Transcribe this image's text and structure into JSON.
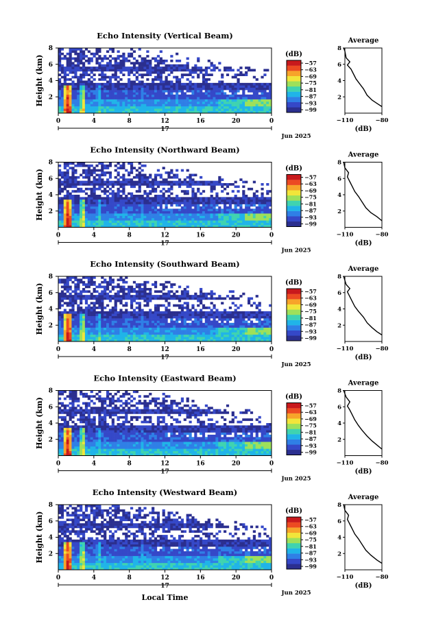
{
  "chart_data": {
    "type": "heatmap",
    "colorbar": {
      "unit": "(dB)",
      "ticks": [
        -57,
        -63,
        -69,
        -75,
        -81,
        -87,
        -93,
        -99
      ],
      "colors": [
        "#2b2f8f",
        "#3548c8",
        "#2f7fe6",
        "#20b4e8",
        "#3fd3b0",
        "#9ee05a",
        "#f2e53a",
        "#f7a42a",
        "#ec4a22",
        "#c8191c"
      ]
    },
    "panels": [
      {
        "title": "Echo Intensity (Vertical Beam)",
        "ylabel": "Height (km)",
        "yticks": [
          "2",
          "4",
          "6",
          "8"
        ],
        "avg_title": "Average",
        "avg_xticks": [
          "−110",
          "−80"
        ],
        "avg_xlabel": "(dB)",
        "avg_yticks": [
          "2",
          "4",
          "6",
          "8"
        ],
        "avg_profile": [
          [
            -80,
            0.8
          ],
          [
            -84,
            1.2
          ],
          [
            -88,
            1.6
          ],
          [
            -92,
            2.2
          ],
          [
            -95,
            3.0
          ],
          [
            -98,
            3.6
          ],
          [
            -101,
            4.2
          ],
          [
            -103,
            4.8
          ],
          [
            -105,
            5.4
          ],
          [
            -108,
            5.9
          ],
          [
            -106,
            6.3
          ],
          [
            -109,
            6.8
          ],
          [
            -110,
            7.6
          ],
          [
            -111,
            8.0
          ]
        ]
      },
      {
        "title": "Echo Intensity (Northward Beam)",
        "ylabel": "Height (km)",
        "yticks": [
          "2",
          "4",
          "6",
          "8"
        ],
        "avg_title": "Average",
        "avg_xticks": [
          "−110",
          "−80"
        ],
        "avg_xlabel": "(dB)",
        "avg_yticks": [
          "2",
          "4",
          "6",
          "8"
        ],
        "avg_profile": [
          [
            -80,
            0.8
          ],
          [
            -84,
            1.3
          ],
          [
            -89,
            1.8
          ],
          [
            -93,
            2.4
          ],
          [
            -96,
            3.1
          ],
          [
            -99,
            3.8
          ],
          [
            -102,
            4.4
          ],
          [
            -104,
            5.0
          ],
          [
            -106,
            5.6
          ],
          [
            -108,
            6.2
          ],
          [
            -107,
            6.7
          ],
          [
            -110,
            7.3
          ],
          [
            -111,
            8.0
          ]
        ]
      },
      {
        "title": "Echo Intensity (Southward Beam)",
        "ylabel": "Height (km)",
        "yticks": [
          "2",
          "4",
          "6",
          "8"
        ],
        "avg_title": "Average",
        "avg_xticks": [
          "−110",
          "−80"
        ],
        "avg_xlabel": "(dB)",
        "avg_yticks": [
          "2",
          "4",
          "6",
          "8"
        ],
        "avg_profile": [
          [
            -80,
            0.8
          ],
          [
            -84,
            1.2
          ],
          [
            -88,
            1.7
          ],
          [
            -92,
            2.3
          ],
          [
            -95,
            3.0
          ],
          [
            -99,
            3.7
          ],
          [
            -102,
            4.3
          ],
          [
            -104,
            4.9
          ],
          [
            -106,
            5.5
          ],
          [
            -108,
            6.1
          ],
          [
            -106,
            6.5
          ],
          [
            -109,
            7.0
          ],
          [
            -111,
            8.0
          ]
        ]
      },
      {
        "title": "Echo Intensity (Eastward Beam)",
        "ylabel": "Height (km)",
        "yticks": [
          "2",
          "4",
          "6",
          "8"
        ],
        "avg_title": "Average",
        "avg_xticks": [
          "−110",
          "−80"
        ],
        "avg_xlabel": "(dB)",
        "avg_yticks": [
          "2",
          "4",
          "6",
          "8"
        ],
        "avg_profile": [
          [
            -80,
            0.8
          ],
          [
            -84,
            1.3
          ],
          [
            -88,
            1.8
          ],
          [
            -92,
            2.4
          ],
          [
            -96,
            3.1
          ],
          [
            -99,
            3.7
          ],
          [
            -102,
            4.4
          ],
          [
            -104,
            5.0
          ],
          [
            -106,
            5.6
          ],
          [
            -108,
            6.1
          ],
          [
            -106,
            6.6
          ],
          [
            -109,
            7.2
          ],
          [
            -111,
            8.0
          ]
        ]
      },
      {
        "title": "Echo Intensity (Westward Beam)",
        "ylabel": "Height (km)",
        "yticks": [
          "2",
          "4",
          "6",
          "8"
        ],
        "avg_title": "Average",
        "avg_xticks": [
          "−110",
          "−80"
        ],
        "avg_xlabel": "(dB)",
        "avg_yticks": [
          "2",
          "4",
          "6",
          "8"
        ],
        "avg_profile": [
          [
            -80,
            0.8
          ],
          [
            -84,
            1.2
          ],
          [
            -89,
            1.8
          ],
          [
            -93,
            2.4
          ],
          [
            -96,
            3.1
          ],
          [
            -99,
            3.8
          ],
          [
            -102,
            4.4
          ],
          [
            -104,
            5.0
          ],
          [
            -106,
            5.6
          ],
          [
            -108,
            6.2
          ],
          [
            -107,
            6.7
          ],
          [
            -110,
            7.3
          ],
          [
            -111,
            8.0
          ]
        ]
      }
    ],
    "xticks": [
      "0",
      "4",
      "8",
      "12",
      "16",
      "20",
      "0"
    ],
    "day_label": "17",
    "month_label": "Jun 2025",
    "xlabel": "Local Time",
    "yrange_km": [
      0,
      8
    ],
    "avg_xrange_db": [
      -110,
      -80
    ]
  }
}
